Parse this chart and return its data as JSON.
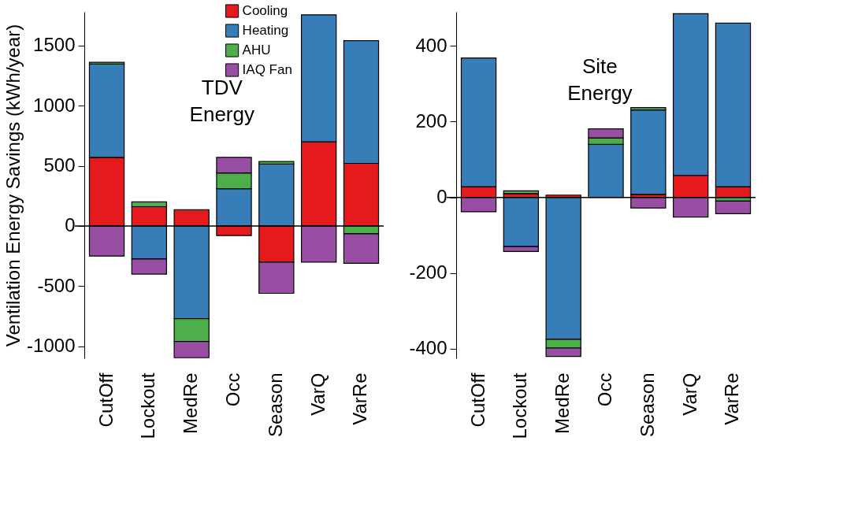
{
  "chart_data": [
    {
      "type": "bar",
      "stacked": true,
      "ylabel": "Ventilation Energy Savings (kWh/year)",
      "annotations": [
        "TDV\nEnergy"
      ],
      "categories": [
        "CutOff",
        "Lockout",
        "MedRe",
        "Occ",
        "Season",
        "VarQ",
        "VarRe"
      ],
      "series": [
        {
          "name": "Cooling",
          "color": "#e41a1c",
          "values": [
            570,
            160,
            135,
            -80,
            -300,
            700,
            520
          ]
        },
        {
          "name": "Heating",
          "color": "#377eb8",
          "values": [
            775,
            -275,
            -770,
            310,
            515,
            1055,
            1020
          ]
        },
        {
          "name": "AHU",
          "color": "#4daf4a",
          "values": [
            15,
            40,
            -190,
            130,
            20,
            null,
            -65
          ]
        },
        {
          "name": "IAQ Fan",
          "color": "#984ea3",
          "values": [
            -250,
            -125,
            -135,
            130,
            -260,
            -300,
            -245
          ]
        }
      ],
      "ylim": [
        -1100,
        1780
      ],
      "yticks": [
        -1000,
        -500,
        0,
        500,
        1000,
        1500
      ],
      "ref_lines": [
        {
          "axis": "y",
          "value": 0
        }
      ],
      "legend": "top",
      "grid": false
    },
    {
      "type": "bar",
      "stacked": true,
      "annotations": [
        "Site\nEnergy"
      ],
      "categories": [
        "CutOff",
        "Lockout",
        "MedRe",
        "Occ",
        "Season",
        "VarQ",
        "VarRe"
      ],
      "series": [
        {
          "color": "#e41a1c",
          "values": [
            28,
            10,
            6,
            null,
            8,
            58,
            28
          ]
        },
        {
          "color": "#377eb8",
          "values": [
            340,
            -130,
            -375,
            140,
            223,
            427,
            432
          ]
        },
        {
          "color": "#4daf4a",
          "values": [
            null,
            7,
            -23,
            17,
            6,
            null,
            -10
          ]
        },
        {
          "color": "#984ea3",
          "values": [
            -38,
            -13,
            -22,
            24,
            -28,
            -52,
            -33
          ]
        }
      ],
      "ylim": [
        -425,
        490
      ],
      "yticks": [
        -400,
        -200,
        0,
        200,
        400
      ],
      "ref_lines": [
        {
          "axis": "y",
          "value": 0
        }
      ],
      "legend": false,
      "grid": false
    }
  ]
}
